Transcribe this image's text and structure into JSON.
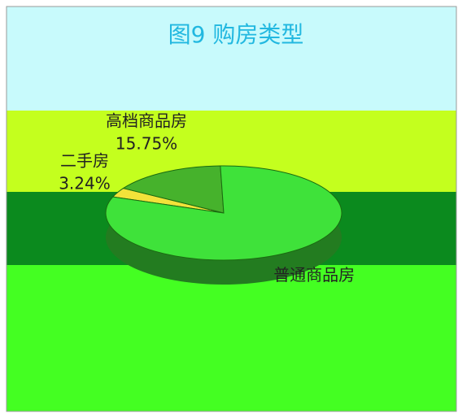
{
  "chart_data": {
    "type": "pie3d",
    "title": "图9 购房类型",
    "categories": [
      "二手房",
      "高档商品房",
      "普通商品房"
    ],
    "values": [
      3.24,
      15.75,
      81.01
    ],
    "value_labels": [
      "3.24%",
      "15.75%",
      null
    ],
    "colors": [
      "#f2e23a",
      "#46b22c",
      "#3fe23a"
    ]
  }
}
